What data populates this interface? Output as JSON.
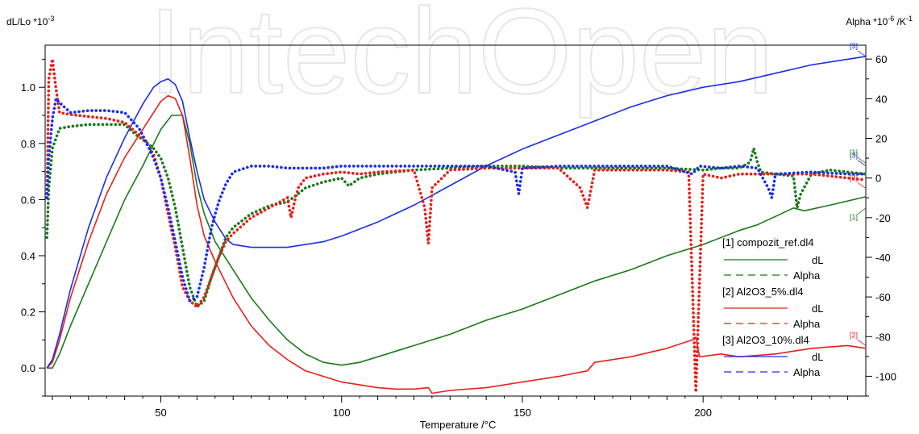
{
  "chart_data": {
    "type": "line",
    "watermark": "IntechOpen",
    "xlabel": "Temperature /°C",
    "ylabel_left": "dL/Lo *10",
    "ylabel_left_exp": "-3",
    "ylabel_right": "Alpha *10",
    "ylabel_right_exp1": "-6",
    "ylabel_right_mid": " /K",
    "ylabel_right_exp2": "-1",
    "xlim": [
      18,
      245
    ],
    "ylim_left": [
      -0.1,
      1.15
    ],
    "ylim_right": [
      -110,
      67
    ],
    "x_ticks": [
      50,
      100,
      150,
      200
    ],
    "y_ticks_left": [
      0.0,
      0.2,
      0.4,
      0.6,
      0.8,
      1.0
    ],
    "y_ticks_left_labels": [
      "0.0",
      "0.2",
      "0.4",
      "0.6",
      "0.8",
      "1.0"
    ],
    "y_ticks_right": [
      -100,
      -80,
      -60,
      -40,
      -20,
      0,
      20,
      40,
      60
    ],
    "legend_position": "bottom-right",
    "legend": [
      {
        "file": "[1] compozit_ref.dl4",
        "dl_label": "dL",
        "alpha_label": "Alpha",
        "color": "#1a7a1a"
      },
      {
        "file": "[2] Al2O3_5%.dl4",
        "dl_label": "dL",
        "alpha_label": "Alpha",
        "color": "#e8201a"
      },
      {
        "file": "[3] Al2O3_10%.dl4",
        "dl_label": "dL",
        "alpha_label": "Alpha",
        "color": "#1a2ee8"
      }
    ],
    "end_markers": [
      {
        "text": "[3]",
        "color": "#1a2ee8",
        "x": 245,
        "y": 1.11
      },
      {
        "text": "[3]",
        "color": "#1a2ee8",
        "x": 245,
        "y": 0.72
      },
      {
        "text": "[1]",
        "color": "#1a7a1a",
        "x": 245,
        "y": 0.73
      },
      {
        "text": "[2]",
        "color": "#e8201a",
        "x": 245,
        "y": 0.64
      },
      {
        "text": "[1]",
        "color": "#1a7a1a",
        "x": 245,
        "y": 0.57
      },
      {
        "text": "[2]",
        "color": "#e8201a",
        "x": 245,
        "y": 0.08
      }
    ],
    "series": [
      {
        "name": "[1] compozit_ref.dl4 dL",
        "axis": "left",
        "style": "solid",
        "color": "#1a7a1a",
        "x": [
          18.5,
          20,
          22,
          25,
          30,
          35,
          40,
          45,
          50,
          53,
          56,
          58,
          60,
          62,
          65,
          70,
          75,
          80,
          85,
          90,
          95,
          100,
          105,
          110,
          120,
          130,
          140,
          150,
          160,
          170,
          180,
          190,
          200,
          210,
          215,
          220,
          225,
          228,
          235,
          245
        ],
        "y": [
          0.0,
          0.0,
          0.05,
          0.15,
          0.3,
          0.45,
          0.6,
          0.72,
          0.85,
          0.9,
          0.9,
          0.8,
          0.65,
          0.55,
          0.45,
          0.35,
          0.25,
          0.17,
          0.1,
          0.05,
          0.02,
          0.01,
          0.02,
          0.04,
          0.08,
          0.12,
          0.17,
          0.21,
          0.26,
          0.31,
          0.35,
          0.4,
          0.44,
          0.49,
          0.51,
          0.54,
          0.57,
          0.56,
          0.58,
          0.61
        ]
      },
      {
        "name": "[2] Al2O3_5%.dl4 dL",
        "axis": "left",
        "style": "solid",
        "color": "#e8201a",
        "x": [
          18.5,
          20,
          22,
          25,
          30,
          35,
          40,
          45,
          50,
          52,
          54,
          56,
          58,
          60,
          62,
          65,
          70,
          75,
          80,
          85,
          90,
          95,
          100,
          105,
          110,
          115,
          120,
          124,
          125,
          130,
          140,
          150,
          160,
          168,
          170,
          180,
          190,
          197,
          198,
          199,
          205,
          210,
          220,
          230,
          240,
          245
        ],
        "y": [
          0.0,
          0.02,
          0.1,
          0.25,
          0.45,
          0.62,
          0.75,
          0.85,
          0.95,
          0.97,
          0.96,
          0.9,
          0.75,
          0.58,
          0.47,
          0.38,
          0.25,
          0.15,
          0.08,
          0.03,
          -0.01,
          -0.03,
          -0.05,
          -0.06,
          -0.07,
          -0.075,
          -0.075,
          -0.07,
          -0.09,
          -0.08,
          -0.07,
          -0.05,
          -0.03,
          -0.01,
          0.02,
          0.04,
          0.07,
          0.1,
          0.11,
          0.04,
          0.05,
          0.04,
          0.05,
          0.07,
          0.08,
          0.07
        ]
      },
      {
        "name": "[3] Al2O3_10%.dl4 dL",
        "axis": "left",
        "style": "solid",
        "color": "#1a2ee8",
        "x": [
          18.5,
          20,
          22,
          25,
          30,
          35,
          40,
          45,
          48,
          50,
          52,
          54,
          56,
          58,
          60,
          62,
          65,
          68,
          70,
          75,
          80,
          85,
          90,
          95,
          100,
          110,
          120,
          130,
          140,
          150,
          160,
          170,
          180,
          190,
          200,
          210,
          220,
          230,
          240,
          245
        ],
        "y": [
          0.0,
          0.03,
          0.12,
          0.28,
          0.5,
          0.68,
          0.82,
          0.94,
          1.0,
          1.02,
          1.03,
          1.01,
          0.95,
          0.82,
          0.7,
          0.6,
          0.52,
          0.46,
          0.44,
          0.43,
          0.43,
          0.43,
          0.44,
          0.45,
          0.47,
          0.52,
          0.58,
          0.65,
          0.72,
          0.78,
          0.83,
          0.88,
          0.93,
          0.97,
          1.0,
          1.02,
          1.05,
          1.08,
          1.1,
          1.11
        ]
      },
      {
        "name": "[1] compozit_ref.dl4 Alpha",
        "axis": "right",
        "style": "dotted",
        "color": "#1a7a1a",
        "x": [
          18.5,
          19,
          20,
          22,
          25,
          30,
          35,
          40,
          43,
          46,
          48,
          50,
          52,
          54,
          56,
          58,
          60,
          62,
          64,
          66,
          68,
          70,
          75,
          80,
          85,
          88,
          90,
          95,
          100,
          102,
          105,
          110,
          120,
          130,
          140,
          150,
          160,
          170,
          180,
          190,
          200,
          205,
          210,
          213,
          214,
          215,
          216,
          220,
          225,
          226,
          227,
          230,
          235,
          240,
          245
        ],
        "y": [
          -30,
          -5,
          15,
          25,
          26,
          27,
          27,
          27,
          22,
          18,
          15,
          10,
          0,
          -15,
          -35,
          -55,
          -65,
          -62,
          -50,
          -40,
          -30,
          -25,
          -18,
          -14,
          -12,
          -8,
          -5,
          -2,
          0,
          -4,
          0,
          2,
          4,
          5,
          6,
          6,
          5,
          5,
          5,
          5,
          4,
          5,
          5,
          8,
          15,
          8,
          3,
          2,
          1,
          -15,
          -8,
          2,
          4,
          3,
          2
        ]
      },
      {
        "name": "[2] Al2O3_5%.dl4 Alpha",
        "axis": "right",
        "style": "dotted",
        "color": "#e8201a",
        "x": [
          18.5,
          19,
          20,
          21,
          22,
          25,
          30,
          35,
          40,
          45,
          48,
          50,
          52,
          54,
          56,
          58,
          60,
          62,
          64,
          66,
          68,
          70,
          75,
          80,
          85,
          86,
          87,
          88,
          90,
          95,
          100,
          105,
          110,
          120,
          123,
          124,
          125,
          130,
          140,
          150,
          160,
          166,
          168,
          170,
          180,
          190,
          196,
          198,
          200,
          205,
          210,
          220,
          230,
          240,
          245
        ],
        "y": [
          -10,
          50,
          60,
          45,
          33,
          32,
          31,
          30,
          28,
          20,
          12,
          0,
          -18,
          -35,
          -55,
          -62,
          -65,
          -60,
          -50,
          -40,
          -32,
          -28,
          -20,
          -15,
          -10,
          -20,
          -12,
          -5,
          0,
          2,
          3,
          2,
          3,
          4,
          -15,
          -33,
          -5,
          4,
          5,
          5,
          5,
          -5,
          -15,
          4,
          4,
          4,
          3,
          -108,
          2,
          0,
          2,
          2,
          2,
          0,
          -1
        ]
      },
      {
        "name": "[3] Al2O3_10%.dl4 Alpha",
        "axis": "right",
        "style": "dotted",
        "color": "#1a2ee8",
        "x": [
          18.5,
          19,
          20,
          21,
          22,
          25,
          30,
          35,
          40,
          44,
          46,
          48,
          50,
          52,
          54,
          56,
          58,
          60,
          62,
          64,
          66,
          68,
          70,
          75,
          80,
          85,
          90,
          95,
          100,
          110,
          120,
          130,
          140,
          148,
          149,
          150,
          160,
          170,
          180,
          190,
          197,
          199,
          205,
          210,
          215,
          218,
          219,
          220,
          230,
          240,
          245
        ],
        "y": [
          -10,
          10,
          30,
          40,
          38,
          33,
          34,
          34,
          33,
          25,
          18,
          10,
          0,
          -15,
          -32,
          -50,
          -62,
          -60,
          -45,
          -25,
          -12,
          -3,
          3,
          6,
          6,
          5,
          5,
          5,
          6,
          6,
          6,
          6,
          6,
          3,
          -8,
          5,
          6,
          6,
          6,
          6,
          2,
          6,
          5,
          6,
          5,
          -5,
          -10,
          2,
          3,
          2,
          2
        ]
      }
    ]
  }
}
